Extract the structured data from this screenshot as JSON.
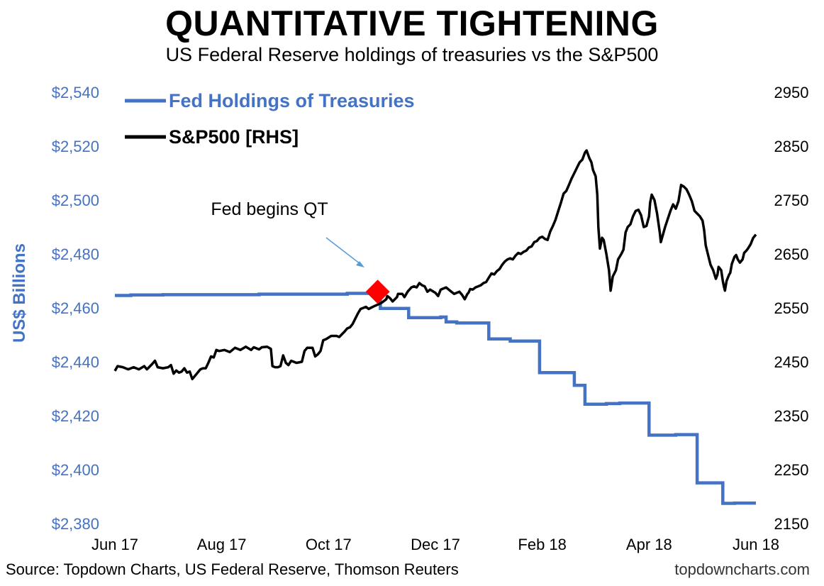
{
  "title": "QUANTITATIVE TIGHTENING",
  "subtitle": "US Federal Reserve holdings of treasuries vs the S&P500",
  "source": "Source: Topdown Charts, US Federal Reserve, Thomson Reuters",
  "brand": "topdowncharts.com",
  "colors": {
    "fed": "#4472C4",
    "spx": "#000000",
    "marker": "#FF0000",
    "arrow": "#5B9BD5"
  },
  "chart_data": {
    "type": "line",
    "title": "QUANTITATIVE TIGHTENING",
    "subtitle": "US Federal Reserve holdings of treasuries vs the S&P500",
    "ylabel": "US$ Billions",
    "ylim": [
      2380,
      2540
    ],
    "y2lim": [
      2150,
      2950
    ],
    "left_ticks": [
      "$2,380",
      "$2,400",
      "$2,420",
      "$2,440",
      "$2,460",
      "$2,480",
      "$2,500",
      "$2,520",
      "$2,540"
    ],
    "right_ticks": [
      "2150",
      "2250",
      "2350",
      "2450",
      "2550",
      "2650",
      "2750",
      "2850",
      "2950"
    ],
    "x_ticks": [
      "Jun 17",
      "Aug 17",
      "Oct 17",
      "Dec 17",
      "Feb 18",
      "Apr 18",
      "Jun 18"
    ],
    "xlim": [
      0,
      12
    ],
    "legend": {
      "placement": "top-left"
    },
    "annotation": {
      "text": "Fed begins QT",
      "x": 4.92,
      "y": 2466
    },
    "grid": false,
    "series": [
      {
        "name": "Fed Holdings of Treasuries",
        "axis": "left",
        "step": true,
        "points": [
          [
            0,
            2464.6
          ],
          [
            0.3,
            2464.6
          ],
          [
            0.3,
            2464.8
          ],
          [
            0.9,
            2464.8
          ],
          [
            0.9,
            2464.9
          ],
          [
            2.7,
            2464.9
          ],
          [
            2.7,
            2465.1
          ],
          [
            4.35,
            2465.1
          ],
          [
            4.35,
            2465.4
          ],
          [
            4.97,
            2465.4
          ],
          [
            4.97,
            2459.8
          ],
          [
            5.5,
            2459.8
          ],
          [
            5.5,
            2456.4
          ],
          [
            6.1,
            2456.4
          ],
          [
            6.1,
            2456.6
          ],
          [
            6.2,
            2456.6
          ],
          [
            6.2,
            2454.8
          ],
          [
            6.4,
            2454.8
          ],
          [
            6.4,
            2454.4
          ],
          [
            7.0,
            2454.4
          ],
          [
            7.0,
            2448.5
          ],
          [
            7.4,
            2448.5
          ],
          [
            7.4,
            2447.7
          ],
          [
            7.95,
            2447.7
          ],
          [
            7.95,
            2436.0
          ],
          [
            8.6,
            2436.0
          ],
          [
            8.6,
            2431.3
          ],
          [
            8.8,
            2431.3
          ],
          [
            8.8,
            2424.3
          ],
          [
            9.2,
            2424.3
          ],
          [
            9.2,
            2424.5
          ],
          [
            9.45,
            2424.5
          ],
          [
            9.45,
            2424.7
          ],
          [
            10.0,
            2424.7
          ],
          [
            10.0,
            2412.8
          ],
          [
            10.5,
            2412.8
          ],
          [
            10.5,
            2413.0
          ],
          [
            10.9,
            2413.0
          ],
          [
            10.9,
            2395.1
          ],
          [
            11.38,
            2395.1
          ],
          [
            11.38,
            2387.5
          ],
          [
            11.6,
            2387.5
          ],
          [
            11.6,
            2387.6
          ],
          [
            12.0,
            2387.6
          ]
        ]
      },
      {
        "name": "S&P500 [RHS]",
        "axis": "right",
        "points": [
          [
            0,
            2433
          ],
          [
            0.05,
            2442
          ],
          [
            0.15,
            2440
          ],
          [
            0.25,
            2436
          ],
          [
            0.35,
            2440
          ],
          [
            0.45,
            2436
          ],
          [
            0.55,
            2442
          ],
          [
            0.6,
            2436
          ],
          [
            0.7,
            2446
          ],
          [
            0.75,
            2452
          ],
          [
            0.8,
            2440
          ],
          [
            0.9,
            2438
          ],
          [
            1.0,
            2440
          ],
          [
            1.05,
            2444
          ],
          [
            1.1,
            2428
          ],
          [
            1.15,
            2434
          ],
          [
            1.2,
            2430
          ],
          [
            1.25,
            2432
          ],
          [
            1.3,
            2438
          ],
          [
            1.35,
            2430
          ],
          [
            1.4,
            2432
          ],
          [
            1.45,
            2418
          ],
          [
            1.5,
            2424
          ],
          [
            1.6,
            2436
          ],
          [
            1.65,
            2438
          ],
          [
            1.7,
            2438
          ],
          [
            1.75,
            2448
          ],
          [
            1.8,
            2460
          ],
          [
            1.85,
            2458
          ],
          [
            1.9,
            2472
          ],
          [
            1.95,
            2470
          ],
          [
            2.05,
            2472
          ],
          [
            2.15,
            2468
          ],
          [
            2.25,
            2476
          ],
          [
            2.35,
            2472
          ],
          [
            2.45,
            2478
          ],
          [
            2.55,
            2472
          ],
          [
            2.6,
            2477
          ],
          [
            2.7,
            2473
          ],
          [
            2.75,
            2477
          ],
          [
            2.85,
            2478
          ],
          [
            2.92,
            2474
          ],
          [
            2.95,
            2442
          ],
          [
            3.0,
            2440
          ],
          [
            3.05,
            2440
          ],
          [
            3.1,
            2442
          ],
          [
            3.15,
            2462
          ],
          [
            3.2,
            2448
          ],
          [
            3.25,
            2444
          ],
          [
            3.3,
            2452
          ],
          [
            3.4,
            2448
          ],
          [
            3.5,
            2450
          ],
          [
            3.55,
            2470
          ],
          [
            3.6,
            2476
          ],
          [
            3.65,
            2476
          ],
          [
            3.7,
            2476
          ],
          [
            3.75,
            2460
          ],
          [
            3.8,
            2464
          ],
          [
            3.85,
            2470
          ],
          [
            3.9,
            2490
          ],
          [
            3.95,
            2492
          ],
          [
            4.05,
            2498
          ],
          [
            4.15,
            2498
          ],
          [
            4.2,
            2496
          ],
          [
            4.3,
            2506
          ],
          [
            4.35,
            2512
          ],
          [
            4.4,
            2514
          ],
          [
            4.45,
            2520
          ],
          [
            4.5,
            2530
          ],
          [
            4.55,
            2540
          ],
          [
            4.6,
            2548
          ],
          [
            4.7,
            2552
          ],
          [
            4.75,
            2548
          ],
          [
            4.85,
            2553
          ],
          [
            4.92,
            2556
          ],
          [
            5.0,
            2560
          ],
          [
            5.08,
            2566
          ],
          [
            5.1,
            2572
          ],
          [
            5.15,
            2568
          ],
          [
            5.2,
            2562
          ],
          [
            5.28,
            2570
          ],
          [
            5.3,
            2576
          ],
          [
            5.38,
            2576
          ],
          [
            5.42,
            2570
          ],
          [
            5.48,
            2580
          ],
          [
            5.55,
            2588
          ],
          [
            5.6,
            2590
          ],
          [
            5.65,
            2588
          ],
          [
            5.7,
            2596
          ],
          [
            5.75,
            2592
          ],
          [
            5.8,
            2590
          ],
          [
            5.85,
            2580
          ],
          [
            5.9,
            2584
          ],
          [
            6.0,
            2578
          ],
          [
            6.05,
            2572
          ],
          [
            6.1,
            2584
          ],
          [
            6.15,
            2586
          ],
          [
            6.2,
            2588
          ],
          [
            6.25,
            2584
          ],
          [
            6.3,
            2580
          ],
          [
            6.35,
            2576
          ],
          [
            6.4,
            2578
          ],
          [
            6.45,
            2580
          ],
          [
            6.5,
            2574
          ],
          [
            6.55,
            2566
          ],
          [
            6.6,
            2576
          ],
          [
            6.62,
            2578
          ],
          [
            6.65,
            2585
          ],
          [
            6.7,
            2584
          ],
          [
            6.75,
            2588
          ],
          [
            6.8,
            2590
          ],
          [
            6.85,
            2592
          ],
          [
            6.9,
            2596
          ],
          [
            6.95,
            2598
          ],
          [
            7.0,
            2606
          ],
          [
            7.05,
            2614
          ],
          [
            7.1,
            2612
          ],
          [
            7.15,
            2618
          ],
          [
            7.2,
            2622
          ],
          [
            7.25,
            2630
          ],
          [
            7.3,
            2636
          ],
          [
            7.35,
            2640
          ],
          [
            7.4,
            2642
          ],
          [
            7.45,
            2640
          ],
          [
            7.5,
            2647
          ],
          [
            7.55,
            2652
          ],
          [
            7.6,
            2650
          ],
          [
            7.65,
            2654
          ],
          [
            7.7,
            2656
          ],
          [
            7.75,
            2662
          ],
          [
            7.8,
            2664
          ],
          [
            7.85,
            2672
          ],
          [
            7.9,
            2674
          ],
          [
            7.95,
            2680
          ],
          [
            8.0,
            2682
          ],
          [
            8.05,
            2678
          ],
          [
            8.1,
            2676
          ],
          [
            8.15,
            2692
          ],
          [
            8.2,
            2702
          ],
          [
            8.25,
            2714
          ],
          [
            8.3,
            2730
          ],
          [
            8.35,
            2745
          ],
          [
            8.4,
            2762
          ],
          [
            8.45,
            2767
          ],
          [
            8.5,
            2778
          ],
          [
            8.55,
            2790
          ],
          [
            8.6,
            2800
          ],
          [
            8.65,
            2810
          ],
          [
            8.7,
            2820
          ],
          [
            8.75,
            2825
          ],
          [
            8.8,
            2838
          ],
          [
            8.83,
            2842
          ],
          [
            8.88,
            2828
          ],
          [
            8.92,
            2820
          ],
          [
            8.95,
            2806
          ],
          [
            9.0,
            2794
          ],
          [
            9.03,
            2760
          ],
          [
            9.05,
            2700
          ],
          [
            9.08,
            2660
          ],
          [
            9.12,
            2680
          ],
          [
            9.15,
            2676
          ],
          [
            9.2,
            2650
          ],
          [
            9.25,
            2620
          ],
          [
            9.28,
            2582
          ],
          [
            9.32,
            2608
          ],
          [
            9.38,
            2620
          ],
          [
            9.42,
            2640
          ],
          [
            9.48,
            2650
          ],
          [
            9.52,
            2658
          ],
          [
            9.56,
            2690
          ],
          [
            9.6,
            2700
          ],
          [
            9.65,
            2705
          ],
          [
            9.7,
            2720
          ],
          [
            9.75,
            2730
          ],
          [
            9.8,
            2732
          ],
          [
            9.85,
            2722
          ],
          [
            9.9,
            2700
          ],
          [
            9.95,
            2702
          ],
          [
            10.0,
            2720
          ],
          [
            10.02,
            2745
          ],
          [
            10.05,
            2760
          ],
          [
            10.1,
            2750
          ],
          [
            10.15,
            2725
          ],
          [
            10.2,
            2690
          ],
          [
            10.22,
            2672
          ],
          [
            10.3,
            2700
          ],
          [
            10.35,
            2715
          ],
          [
            10.4,
            2730
          ],
          [
            10.45,
            2742
          ],
          [
            10.5,
            2734
          ],
          [
            10.55,
            2748
          ],
          [
            10.6,
            2778
          ],
          [
            10.65,
            2775
          ],
          [
            10.7,
            2770
          ],
          [
            10.75,
            2760
          ],
          [
            10.8,
            2748
          ],
          [
            10.85,
            2730
          ],
          [
            10.9,
            2725
          ],
          [
            10.95,
            2720
          ],
          [
            11.0,
            2712
          ],
          [
            11.03,
            2695
          ]
        ],
        "points_b": [
          [
            11.03,
            2695
          ],
          [
            11.06,
            2666
          ],
          [
            11.1,
            2650
          ],
          [
            11.15,
            2630
          ],
          [
            11.2,
            2620
          ],
          [
            11.25,
            2604
          ],
          [
            11.28,
            2612
          ],
          [
            11.3,
            2626
          ],
          [
            11.35,
            2620
          ],
          [
            11.38,
            2600
          ],
          [
            11.4,
            2590
          ],
          [
            11.42,
            2582
          ],
          [
            11.45,
            2600
          ],
          [
            11.5,
            2612
          ],
          [
            11.52,
            2615
          ],
          [
            11.55,
            2632
          ],
          [
            11.6,
            2645
          ],
          [
            11.63,
            2648
          ],
          [
            11.66,
            2640
          ],
          [
            11.7,
            2634
          ],
          [
            11.75,
            2640
          ],
          [
            11.78,
            2652
          ],
          [
            11.82,
            2656
          ],
          [
            11.85,
            2660
          ],
          [
            11.9,
            2668
          ],
          [
            11.95,
            2680
          ],
          [
            12.0,
            2686
          ]
        ]
      }
    ]
  },
  "legend_labels": [
    "Fed Holdings of Treasuries",
    "S&P500 [RHS]"
  ]
}
